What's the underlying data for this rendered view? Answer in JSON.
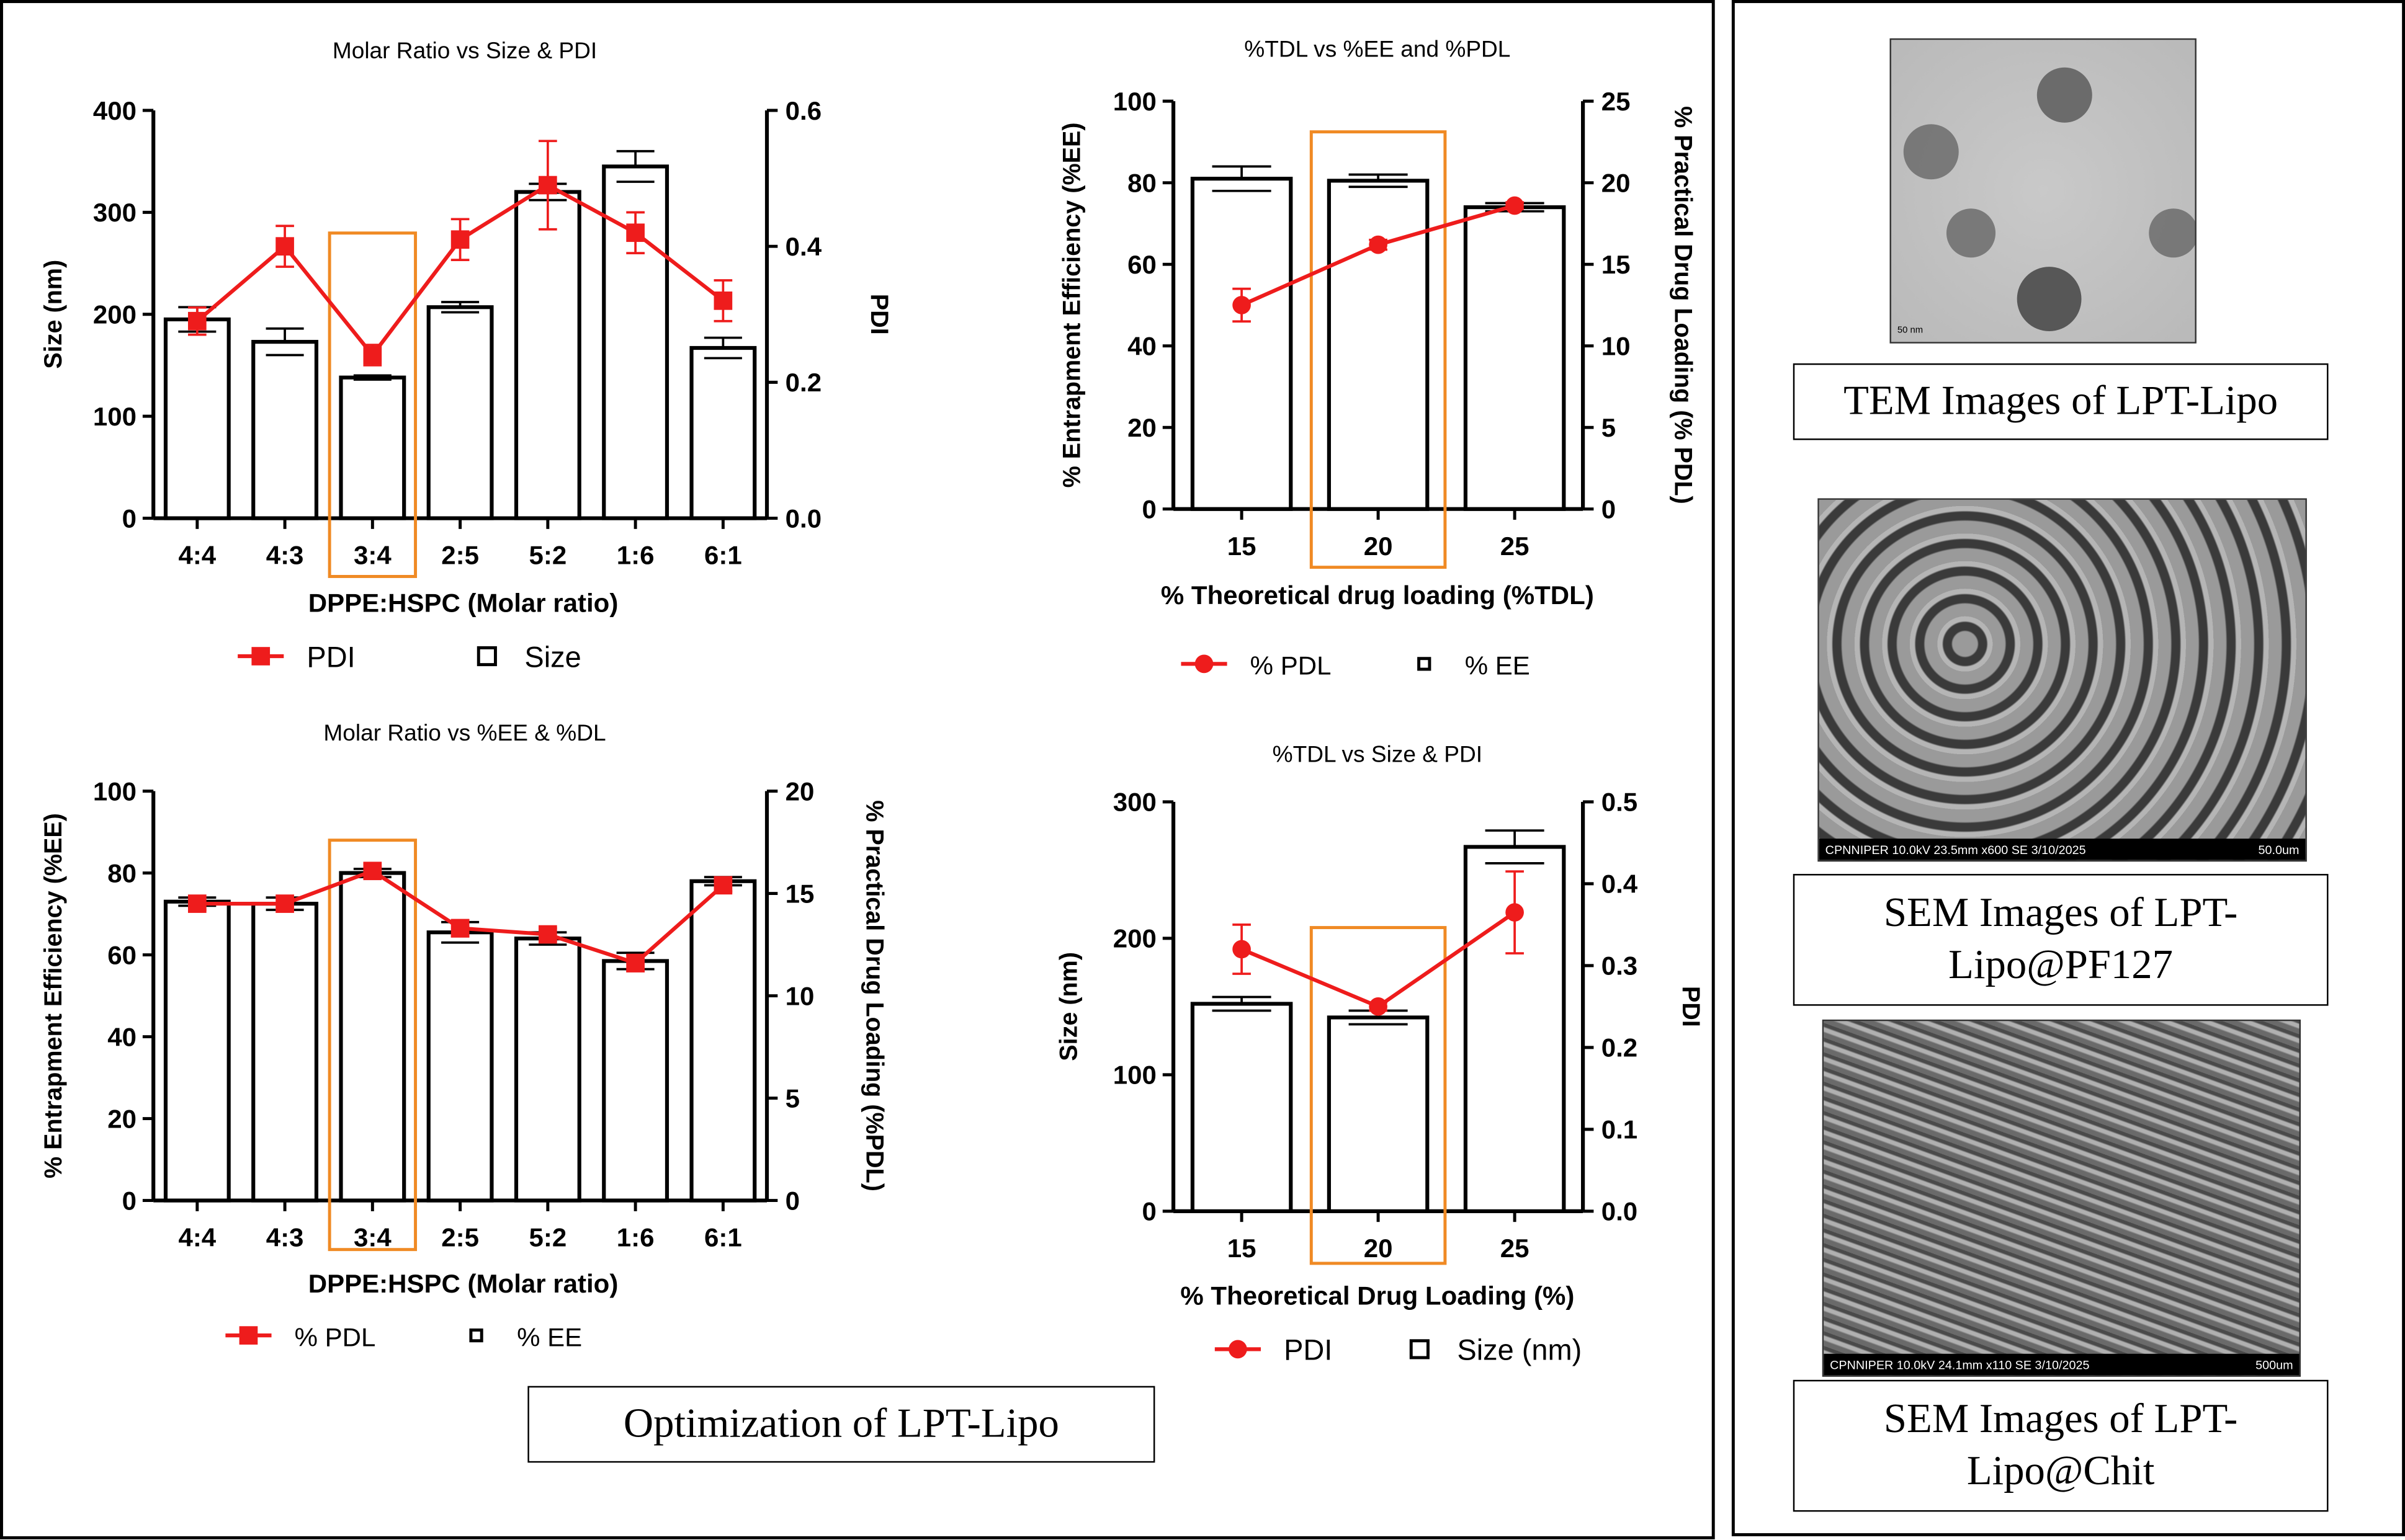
{
  "main_caption": "Optimization of LPT-Lipo",
  "side": {
    "tem_caption": "TEM Images of LPT-Lipo",
    "tem_scale": "50 nm",
    "sem1_caption": "SEM Images of LPT-Lipo@PF127",
    "sem1_info": "CPNNIPER 10.0kV 23.5mm x600 SE  3/10/2025",
    "sem1_scale": "50.0um",
    "sem2_caption": "SEM Images of LPT-Lipo@Chit",
    "sem2_info": "CPNNIPER 10.0kV 24.1mm x110 SE  3/10/2025",
    "sem2_scale": "500um"
  },
  "colors": {
    "line": "#ee1c1c",
    "highlight": "#f08a24",
    "bar": "#ffffff"
  },
  "chart_data": [
    {
      "type": "bar+line",
      "title": "Molar Ratio vs Size & PDI",
      "xlabel": "DPPE:HSPC (Molar ratio)",
      "ylabel": "Size (nm)",
      "y2label": "PDI",
      "categories": [
        "4:4",
        "4:3",
        "3:4",
        "2:5",
        "5:2",
        "1:6",
        "6:1"
      ],
      "ylim": [
        0,
        400
      ],
      "yticks": [
        0,
        100,
        200,
        300,
        400
      ],
      "y2lim": [
        0,
        0.6
      ],
      "y2ticks": [
        "0.0",
        "0.2",
        "0.4",
        "0.6"
      ],
      "highlight": "3:4",
      "marker": "square",
      "bars": {
        "name": "Size",
        "values": [
          195,
          173,
          138,
          207,
          320,
          345,
          167
        ],
        "errors": [
          12,
          13,
          2,
          5,
          8,
          15,
          10
        ]
      },
      "line": {
        "name": "PDI",
        "values": [
          0.29,
          0.4,
          0.24,
          0.41,
          0.49,
          0.42,
          0.32
        ],
        "errors": [
          0.02,
          0.03,
          0.015,
          0.03,
          0.065,
          0.03,
          0.03
        ]
      }
    },
    {
      "type": "bar+line",
      "title": "%TDL vs %EE and %PDL",
      "xlabel": "% Theoretical drug loading (%TDL)",
      "ylabel": "% Entrapment Efficiency (%EE)",
      "y2label": "% Practical Drug Loading (% PDL)",
      "categories": [
        "15",
        "20",
        "25"
      ],
      "ylim": [
        0,
        100
      ],
      "yticks": [
        0,
        20,
        40,
        60,
        80,
        100
      ],
      "y2lim": [
        0,
        25
      ],
      "y2ticks": [
        "0",
        "5",
        "10",
        "15",
        "20",
        "25"
      ],
      "highlight": "20",
      "marker": "circle",
      "bars": {
        "name": "% EE",
        "values": [
          81,
          80.5,
          74
        ],
        "errors": [
          3,
          1.5,
          1
        ]
      },
      "line": {
        "name": "% PDL",
        "values": [
          12.5,
          16.2,
          18.6
        ],
        "errors": [
          1,
          0.3,
          0.2
        ]
      }
    },
    {
      "type": "bar+line",
      "title": "Molar Ratio vs %EE & %DL",
      "xlabel": "DPPE:HSPC (Molar ratio)",
      "ylabel": "% Entrapment Efficiency (%EE)",
      "y2label": "% Practical Drug Loading (%PDL)",
      "categories": [
        "4:4",
        "4:3",
        "3:4",
        "2:5",
        "5:2",
        "1:6",
        "6:1"
      ],
      "ylim": [
        0,
        100
      ],
      "yticks": [
        0,
        20,
        40,
        60,
        80,
        100
      ],
      "y2lim": [
        0,
        20
      ],
      "y2ticks": [
        "0",
        "5",
        "10",
        "15",
        "20"
      ],
      "highlight": "3:4",
      "marker": "square",
      "bars": {
        "name": "% EE",
        "values": [
          73,
          72.5,
          80,
          65.5,
          64,
          58.5,
          78
        ],
        "errors": [
          1,
          1.5,
          1,
          2.5,
          1.5,
          2,
          1
        ]
      },
      "line": {
        "name": "% PDL",
        "values": [
          14.5,
          14.5,
          16.1,
          13.3,
          13.0,
          11.6,
          15.4
        ],
        "errors": [
          0.3,
          0.3,
          0.2,
          0.4,
          0.3,
          0.4,
          0.3
        ]
      }
    },
    {
      "type": "bar+line",
      "title": "%TDL vs Size & PDI",
      "xlabel": "% Theoretical Drug Loading (%)",
      "ylabel": "Size (nm)",
      "y2label": "PDI",
      "categories": [
        "15",
        "20",
        "25"
      ],
      "ylim": [
        0,
        300
      ],
      "yticks": [
        0,
        100,
        200,
        300
      ],
      "y2lim": [
        0,
        0.5
      ],
      "y2ticks": [
        "0.0",
        "0.1",
        "0.2",
        "0.3",
        "0.4",
        "0.5"
      ],
      "highlight": "20",
      "marker": "circle",
      "bars": {
        "name": "Size (nm)",
        "values": [
          152,
          142,
          267
        ],
        "errors": [
          5,
          5,
          12
        ]
      },
      "line": {
        "name": "PDI",
        "values": [
          0.32,
          0.25,
          0.365
        ],
        "errors": [
          0.03,
          0.005,
          0.05
        ]
      }
    }
  ]
}
